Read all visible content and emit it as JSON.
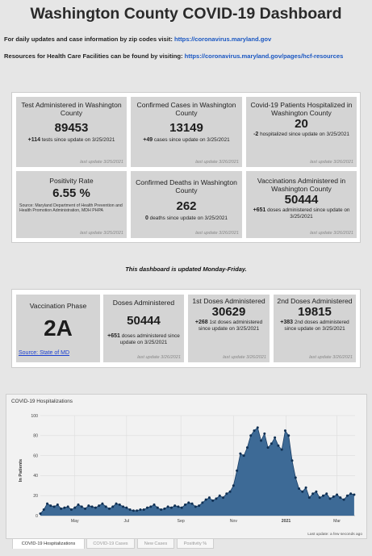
{
  "header": {
    "title": "Washington County COVID-19 Dashboard",
    "info1_text": "For daily updates and case information by zip codes visit: ",
    "info1_link": "https://coronavirus.maryland.gov",
    "info2_text": "Resources for Health Care Facilities can be found by visiting: ",
    "info2_link": "https://coronavirus.maryland.gov/pages/hcf-resources"
  },
  "cards": [
    {
      "label": "Test Administered in Washington County",
      "value": "89453",
      "delta_num": "+114",
      "delta_text": " tests since update on 3/25/2021",
      "updated": "last update 3/25/2021"
    },
    {
      "label": "Confirmed Cases in Washington County",
      "value": "13149",
      "delta_num": "+49",
      "delta_text": " cases since update on 3/25/2021",
      "updated": "last update 3/26/2021"
    },
    {
      "label": "Covid-19 Patients Hospitalized in Washington County",
      "value": "20",
      "delta_num": "-2",
      "delta_text": " hospitalized since update on 3/25/2021",
      "updated": "last update 3/26/2021"
    },
    {
      "label": "Positivity Rate",
      "value": "6.55 %",
      "source": "Source: Maryland Department of Health Prevention and Health Promotion Administration, MDH PHPA",
      "updated": "last update 3/25/2021"
    },
    {
      "label": "Confirmed Deaths in Washington County",
      "value": "262",
      "delta_num": "0",
      "delta_text": " deaths since update on 3/25/2021",
      "updated": "last update 3/26/2021"
    },
    {
      "label": "Vaccinations Administered in Washington County",
      "value": "50444",
      "delta_num": "+651",
      "delta_text": " doses administered since update on 3/25/2021",
      "updated": "last update 3/26/2021"
    }
  ],
  "notice": "This dashboard is updated Monday-Friday.",
  "vaccine": {
    "phase_label": "Vaccination Phase",
    "phase_value": "2A",
    "phase_source": "Source: State of MD",
    "cards": [
      {
        "label": "Doses Administered",
        "value": "50444",
        "delta_num": "+651",
        "delta_text": " doses administered since update on 3/25/2021",
        "updated": "last update 3/26/2021"
      },
      {
        "label": "1st Doses Administered",
        "value": "30629",
        "delta_num": "+268",
        "delta_text": " 1st doses administered since update on 3/25/2021",
        "updated": "last update 3/26/2021"
      },
      {
        "label": "2nd Doses Administered",
        "value": "19815",
        "delta_num": "+383",
        "delta_text": " 2nd doses administered since update on 3/25/2021",
        "updated": "last update 3/26/2021"
      }
    ]
  },
  "chart_title": "COVID-19 Hospitalizations",
  "chart_footer": "Last update: a few seconds ago",
  "tabs": [
    "COVID-19 Hospitalizations",
    "COVID-19 Cases",
    "New Cases",
    "Positivity %"
  ],
  "colors": {
    "area": "#3d6a96",
    "line": "#1b3f66",
    "marker": "#0f2f52",
    "link": "#1a57c2"
  },
  "chart_data": {
    "type": "area",
    "title": "",
    "xlabel": "",
    "ylabel": "In Patients",
    "ylim": [
      0,
      100
    ],
    "yticks": [
      0,
      20,
      40,
      60,
      80,
      100
    ],
    "xlim": [
      0,
      365
    ],
    "x_tick_labels": [
      "May",
      "Jul",
      "Sep",
      "Nov",
      "2021",
      "Mar"
    ],
    "x_tick_positions": [
      40,
      100,
      163,
      224,
      285,
      344
    ],
    "x": [
      0,
      4,
      8,
      12,
      16,
      20,
      24,
      28,
      32,
      36,
      40,
      44,
      48,
      52,
      56,
      60,
      64,
      68,
      72,
      76,
      80,
      84,
      88,
      92,
      96,
      100,
      104,
      108,
      112,
      116,
      120,
      124,
      128,
      132,
      136,
      140,
      144,
      148,
      152,
      156,
      160,
      164,
      168,
      172,
      176,
      180,
      184,
      188,
      192,
      196,
      200,
      204,
      208,
      212,
      216,
      220,
      224,
      228,
      232,
      236,
      240,
      244,
      248,
      252,
      256,
      260,
      264,
      268,
      272,
      276,
      280,
      284,
      288,
      292,
      296,
      300,
      304,
      308,
      312,
      316,
      320,
      324,
      328,
      332,
      336,
      340,
      344,
      348,
      352,
      356,
      360,
      364
    ],
    "values": [
      2,
      6,
      12,
      10,
      9,
      11,
      7,
      8,
      9,
      6,
      8,
      11,
      9,
      7,
      10,
      9,
      8,
      10,
      12,
      9,
      7,
      9,
      12,
      11,
      9,
      8,
      6,
      5,
      5,
      6,
      6,
      8,
      9,
      11,
      8,
      6,
      7,
      9,
      8,
      10,
      9,
      8,
      11,
      13,
      12,
      9,
      10,
      13,
      16,
      18,
      15,
      17,
      20,
      18,
      22,
      24,
      30,
      45,
      62,
      60,
      68,
      80,
      85,
      88,
      75,
      82,
      68,
      72,
      78,
      70,
      66,
      85,
      80,
      55,
      38,
      27,
      24,
      28,
      18,
      22,
      24,
      18,
      20,
      22,
      17,
      19,
      21,
      18,
      16,
      20,
      22,
      21
    ]
  }
}
